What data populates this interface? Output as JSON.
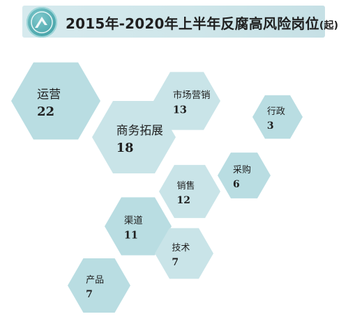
{
  "title": {
    "main": "2015年-2020年上半年反腐高风险岗位",
    "unit": "(起)"
  },
  "colors": {
    "hex_fill": "#b9dde2",
    "hex_fill_light": "#c9e4e8",
    "title_bg": "#d2e8ec",
    "badge": "#4aa6ab"
  },
  "icons": {
    "title_badge": "globe-badge-icon"
  },
  "chart_data": {
    "type": "bubble-hexagon",
    "title": "2015年-2020年上半年反腐高风险岗位",
    "unit": "(起)",
    "categories": [
      "运营",
      "市场营销",
      "行政",
      "商务拓展",
      "采购",
      "销售",
      "渠道",
      "技术",
      "产品"
    ],
    "values": [
      22,
      13,
      3,
      18,
      6,
      12,
      11,
      7,
      7
    ]
  }
}
